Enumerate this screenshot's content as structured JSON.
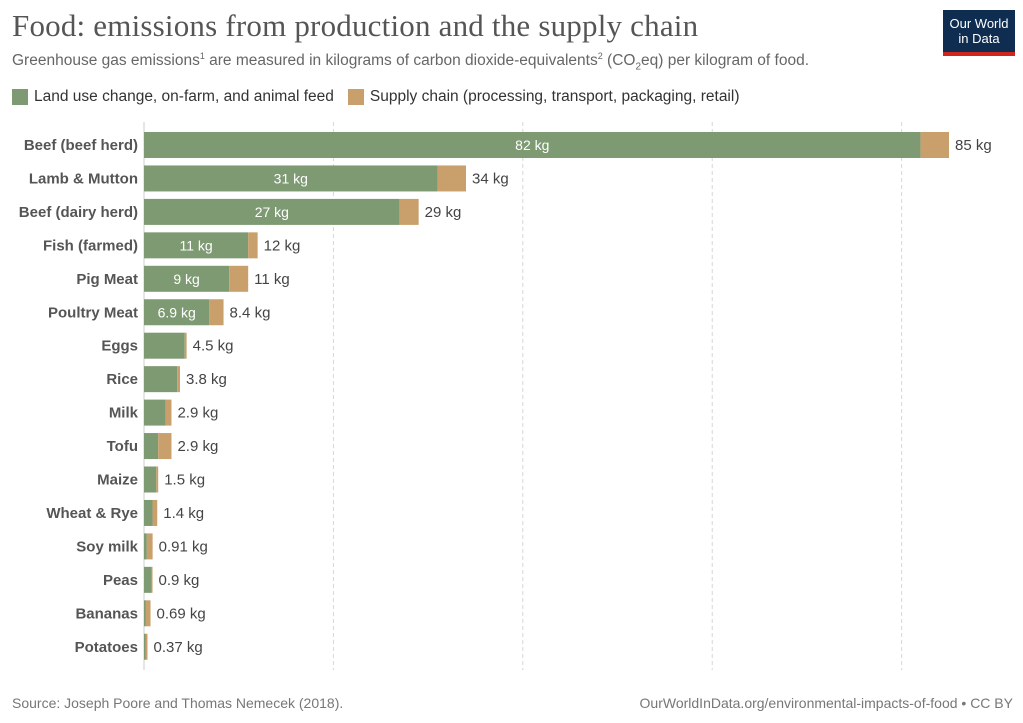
{
  "header": {
    "title": "Food: emissions from production and the supply chain",
    "subtitle_pre": "Greenhouse gas emissions",
    "subtitle_sup1": "1",
    "subtitle_mid": " are measured in kilograms of carbon dioxide-equivalents",
    "subtitle_sup2": "2",
    "subtitle_open": " (CO",
    "subtitle_sub": "2",
    "subtitle_post": "eq) per kilogram of food."
  },
  "logo": {
    "line1": "Our World",
    "line2": "in Data"
  },
  "footer": {
    "source": "Source: Joseph Poore and Thomas Nemecek (2018).",
    "url": "OurWorldInData.org/environmental-impacts-of-food • CC BY"
  },
  "chart_data": {
    "type": "bar",
    "orientation": "horizontal",
    "stacked": true,
    "unit": "kg",
    "xlim": [
      0,
      85
    ],
    "grid": true,
    "legend_placement": "top-left",
    "categories": [
      "Beef (beef herd)",
      "Lamb & Mutton",
      "Beef (dairy herd)",
      "Fish (farmed)",
      "Pig Meat",
      "Poultry Meat",
      "Eggs",
      "Rice",
      "Milk",
      "Tofu",
      "Maize",
      "Wheat & Rye",
      "Soy milk",
      "Peas",
      "Bananas",
      "Potatoes"
    ],
    "series": [
      {
        "name": "Land use change, on-farm, and animal feed",
        "color": "#7e9a73",
        "values": [
          82,
          31,
          27,
          11,
          9,
          6.9,
          4.3,
          3.5,
          2.3,
          1.5,
          1.3,
          0.9,
          0.3,
          0.8,
          0.2,
          0.2
        ],
        "labels": [
          "82 kg",
          "31 kg",
          "27 kg",
          "11 kg",
          "9 kg",
          "6.9 kg",
          "",
          "",
          "",
          "",
          "",
          "",
          "",
          "",
          "",
          ""
        ]
      },
      {
        "name": "Supply chain (processing, transport, packaging, retail)",
        "color": "#c9a06c",
        "values": [
          3,
          3,
          2,
          1,
          2,
          1.5,
          0.2,
          0.3,
          0.6,
          1.4,
          0.2,
          0.5,
          0.61,
          0.1,
          0.49,
          0.17
        ]
      }
    ],
    "totals": [
      "85 kg",
      "34 kg",
      "29 kg",
      "12 kg",
      "11 kg",
      "8.4 kg",
      "4.5 kg",
      "3.8 kg",
      "2.9 kg",
      "2.9 kg",
      "1.5 kg",
      "1.4 kg",
      "0.91 kg",
      "0.9 kg",
      "0.69 kg",
      "0.37 kg"
    ],
    "gridlines": [
      20,
      40,
      60,
      80
    ]
  }
}
